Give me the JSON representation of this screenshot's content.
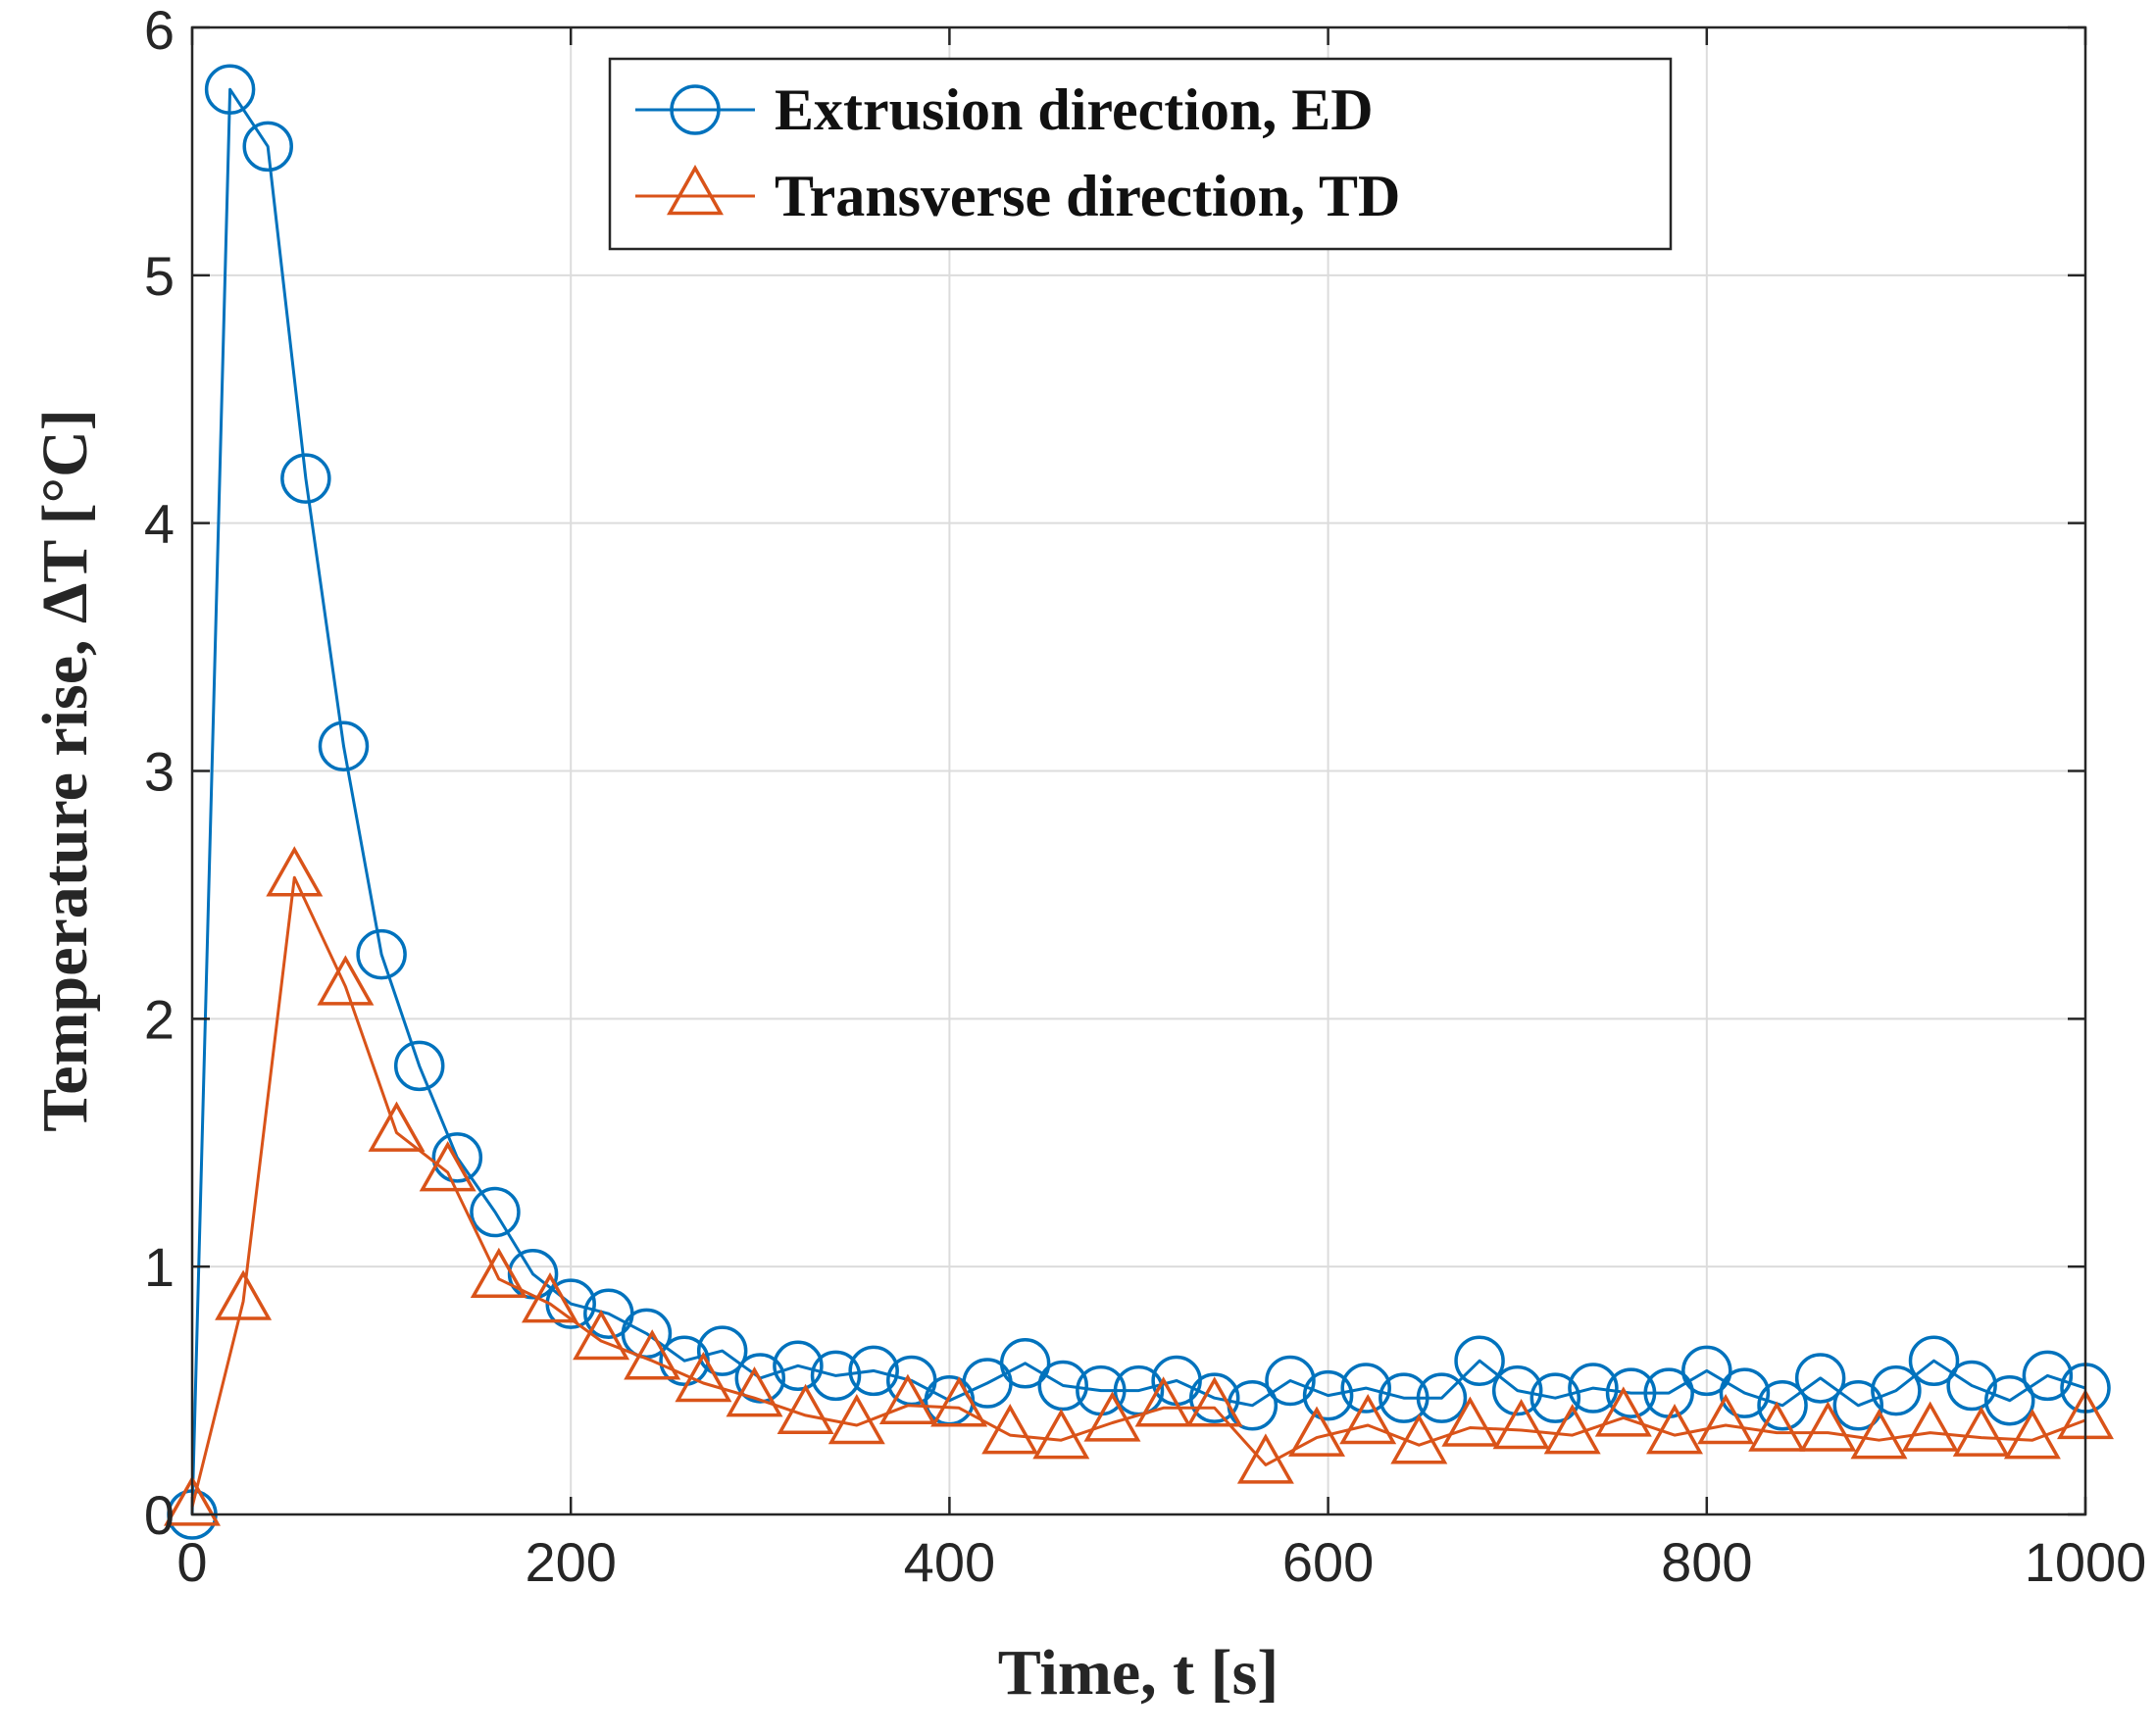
{
  "chart_data": {
    "type": "line",
    "title": "",
    "xlabel": "Time, t [s]",
    "ylabel": "Temperature rise, ΔT [°C]",
    "xlim": [
      0,
      1000
    ],
    "ylim": [
      0,
      6
    ],
    "xticks": [
      0,
      200,
      400,
      600,
      800,
      1000
    ],
    "yticks": [
      0,
      1,
      2,
      3,
      4,
      5,
      6
    ],
    "grid": true,
    "legend_position": "top-center",
    "series": [
      {
        "name": "Extrusion direction, ED",
        "color": "#0072BD",
        "marker": "circle",
        "x": [
          0,
          20,
          40,
          60,
          80,
          100,
          120,
          140,
          160,
          180,
          200,
          220,
          240,
          260,
          280,
          300,
          320,
          340,
          360,
          380,
          400,
          420,
          440,
          460,
          480,
          500,
          520,
          540,
          560,
          580,
          600,
          620,
          640,
          660,
          680,
          700,
          720,
          740,
          760,
          780,
          800,
          820,
          840,
          860,
          880,
          900,
          920,
          940,
          960,
          980,
          1000
        ],
        "y": [
          0.0,
          5.75,
          5.52,
          4.18,
          3.1,
          2.26,
          1.81,
          1.44,
          1.22,
          0.97,
          0.85,
          0.81,
          0.73,
          0.62,
          0.66,
          0.55,
          0.6,
          0.56,
          0.58,
          0.54,
          0.46,
          0.53,
          0.61,
          0.52,
          0.5,
          0.5,
          0.54,
          0.47,
          0.44,
          0.54,
          0.48,
          0.51,
          0.47,
          0.47,
          0.62,
          0.5,
          0.47,
          0.51,
          0.49,
          0.49,
          0.58,
          0.49,
          0.44,
          0.55,
          0.44,
          0.5,
          0.62,
          0.52,
          0.46,
          0.56,
          0.51
        ]
      },
      {
        "name": "Transverse direction, TD",
        "color": "#D95319",
        "marker": "triangle",
        "x": [
          0,
          27,
          54,
          81,
          108,
          135,
          162,
          189,
          216,
          243,
          270,
          297,
          324,
          351,
          378,
          405,
          432,
          459,
          486,
          513,
          540,
          567,
          594,
          621,
          648,
          675,
          702,
          729,
          756,
          783,
          810,
          837,
          864,
          891,
          918,
          945,
          972,
          1000
        ],
        "y": [
          0.03,
          0.86,
          2.57,
          2.13,
          1.54,
          1.38,
          0.95,
          0.85,
          0.7,
          0.62,
          0.53,
          0.47,
          0.4,
          0.36,
          0.44,
          0.43,
          0.32,
          0.3,
          0.37,
          0.43,
          0.43,
          0.2,
          0.31,
          0.36,
          0.28,
          0.35,
          0.34,
          0.32,
          0.39,
          0.32,
          0.36,
          0.33,
          0.33,
          0.3,
          0.33,
          0.31,
          0.3,
          0.38
        ]
      }
    ]
  }
}
